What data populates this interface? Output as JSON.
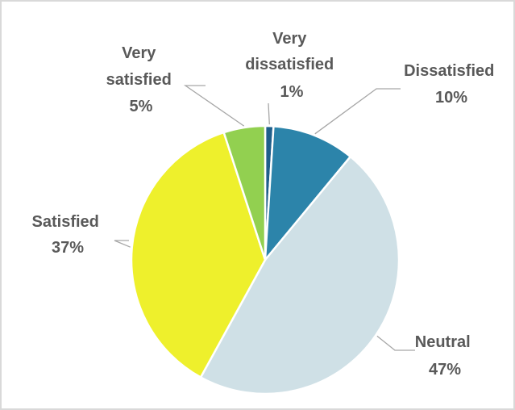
{
  "chart_data": {
    "type": "pie",
    "title": "",
    "slices": [
      {
        "label_lines": [
          "Very",
          "dissatisfied"
        ],
        "percent_label": "1%",
        "value": 1,
        "color": "#1f5f8b"
      },
      {
        "label_lines": [
          "Dissatisfied"
        ],
        "percent_label": "10%",
        "value": 10,
        "color": "#2c84aa"
      },
      {
        "label_lines": [
          "Neutral"
        ],
        "percent_label": "47%",
        "value": 47,
        "color": "#cfe0e6"
      },
      {
        "label_lines": [
          "Satisfied"
        ],
        "percent_label": "37%",
        "value": 37,
        "color": "#eef02c"
      },
      {
        "label_lines": [
          "Very",
          "satisfied"
        ],
        "percent_label": "5%",
        "value": 5,
        "color": "#92d050"
      }
    ],
    "start_angle_deg": 0,
    "direction": "clockwise",
    "legend": "none",
    "data_labels": "outside-with-leader-lines"
  }
}
